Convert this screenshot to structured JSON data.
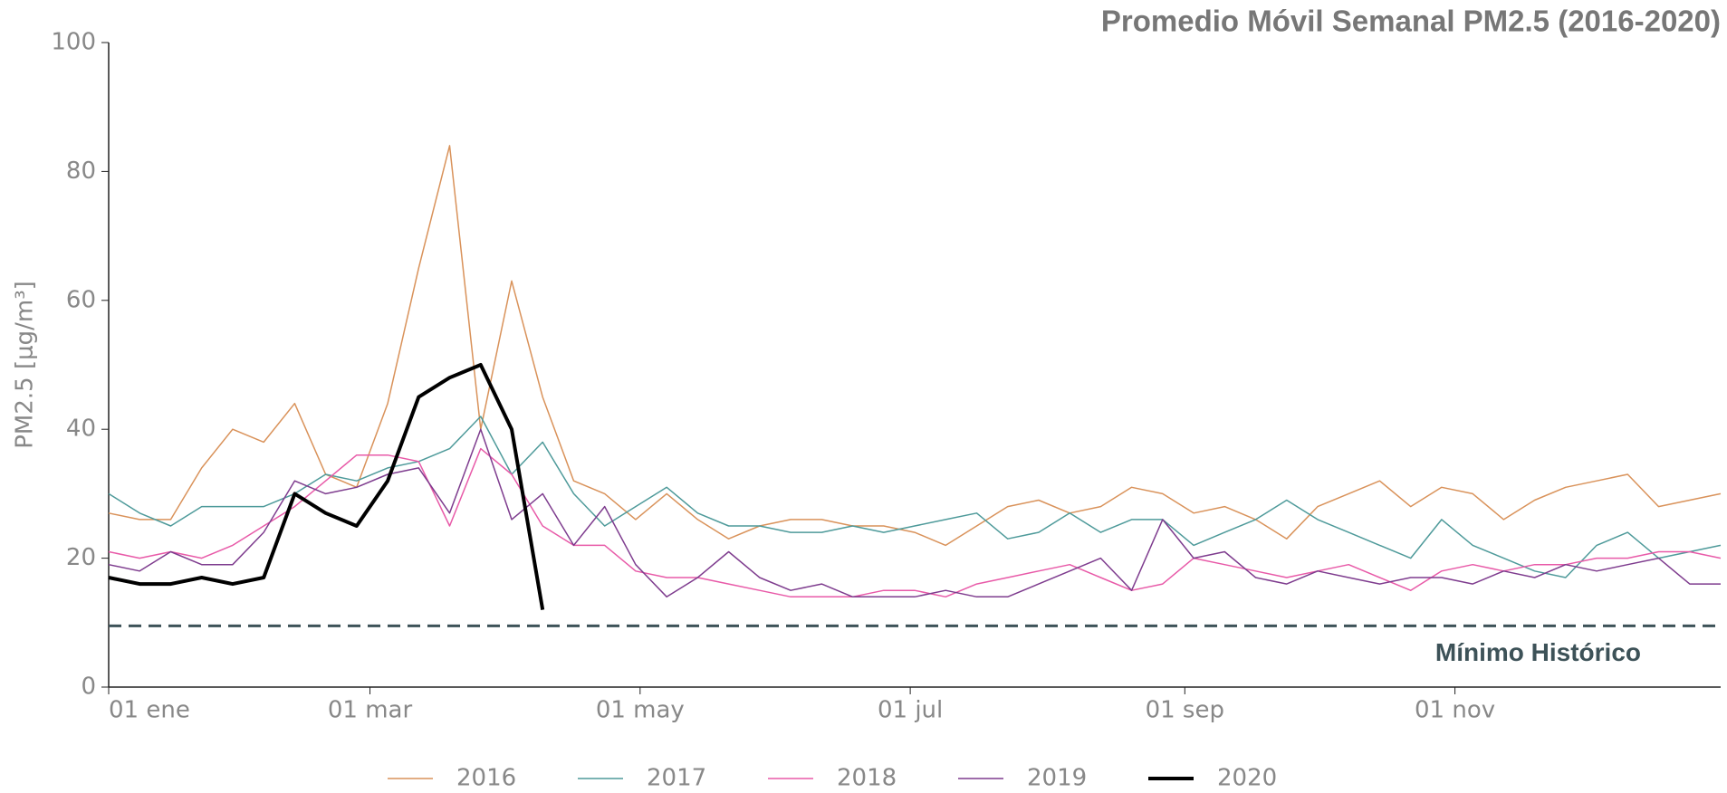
{
  "chart_data": {
    "type": "line",
    "title": "Promedio Móvil Semanal PM2.5 (2016-2020)",
    "y_label": "PM2.5 [μg/m³]",
    "x": [
      0,
      7,
      14,
      21,
      28,
      35,
      42,
      49,
      56,
      63,
      70,
      77,
      84,
      91,
      98,
      105,
      112,
      119,
      126,
      133,
      140,
      147,
      154,
      161,
      168,
      175,
      182,
      189,
      196,
      203,
      210,
      217,
      224,
      231,
      238,
      245,
      252,
      259,
      266,
      273,
      280,
      287,
      294,
      301,
      308,
      315,
      322,
      329,
      336,
      343,
      350,
      357,
      364
    ],
    "xlim": [
      0,
      364
    ],
    "xticks": [
      {
        "value": 0,
        "label": "01 ene"
      },
      {
        "value": 59,
        "label": "01 mar"
      },
      {
        "value": 120,
        "label": "01 may"
      },
      {
        "value": 181,
        "label": "01 jul"
      },
      {
        "value": 243,
        "label": "01 sep"
      },
      {
        "value": 304,
        "label": "01 nov"
      }
    ],
    "ylim": [
      0,
      100
    ],
    "yticks": [
      0,
      20,
      40,
      60,
      80,
      100
    ],
    "grid": false,
    "legend": "bottom",
    "series": [
      {
        "name": "2016",
        "color": "#d9925a",
        "width": 1.5,
        "values": [
          27,
          26,
          26,
          34,
          40,
          38,
          44,
          33,
          31,
          44,
          65,
          84,
          40,
          63,
          45,
          32,
          30,
          26,
          30,
          26,
          23,
          25,
          26,
          26,
          25,
          25,
          24,
          22,
          25,
          28,
          29,
          27,
          28,
          31,
          30,
          27,
          28,
          26,
          23,
          28,
          30,
          32,
          28,
          31,
          30,
          26,
          29,
          31,
          32,
          33,
          28,
          29,
          30
        ]
      },
      {
        "name": "2017",
        "color": "#4e9a9a",
        "width": 1.5,
        "values": [
          30,
          27,
          25,
          28,
          28,
          28,
          30,
          33,
          32,
          34,
          35,
          37,
          42,
          33,
          38,
          30,
          25,
          28,
          31,
          27,
          25,
          25,
          24,
          24,
          25,
          24,
          25,
          26,
          27,
          23,
          24,
          27,
          24,
          26,
          26,
          22,
          24,
          26,
          29,
          26,
          24,
          22,
          20,
          26,
          22,
          20,
          18,
          17,
          22,
          24,
          20,
          21,
          22
        ]
      },
      {
        "name": "2018",
        "color": "#e85aa8",
        "width": 1.5,
        "values": [
          21,
          20,
          21,
          20,
          22,
          25,
          28,
          32,
          36,
          36,
          35,
          25,
          37,
          33,
          25,
          22,
          22,
          18,
          17,
          17,
          16,
          15,
          14,
          14,
          14,
          15,
          15,
          14,
          16,
          17,
          18,
          19,
          17,
          15,
          16,
          20,
          19,
          18,
          17,
          18,
          19,
          17,
          15,
          18,
          19,
          18,
          19,
          19,
          20,
          20,
          21,
          21,
          20
        ]
      },
      {
        "name": "2019",
        "color": "#7e3c8e",
        "width": 1.5,
        "values": [
          19,
          18,
          21,
          19,
          19,
          24,
          32,
          30,
          31,
          33,
          34,
          27,
          40,
          26,
          30,
          22,
          28,
          19,
          14,
          17,
          21,
          17,
          15,
          16,
          14,
          14,
          14,
          15,
          14,
          14,
          16,
          18,
          20,
          15,
          26,
          20,
          21,
          17,
          16,
          18,
          17,
          16,
          17,
          17,
          16,
          18,
          17,
          19,
          18,
          19,
          20,
          16,
          16
        ]
      },
      {
        "name": "2020",
        "color": "#000000",
        "width": 4,
        "values": [
          17,
          16,
          16,
          17,
          16,
          17,
          30,
          27,
          25,
          32,
          45,
          48,
          50,
          40,
          12,
          null,
          null,
          null,
          null,
          null,
          null,
          null,
          null,
          null,
          null,
          null,
          null,
          null,
          null,
          null,
          null,
          null,
          null,
          null,
          null,
          null,
          null,
          null,
          null,
          null,
          null,
          null,
          null,
          null,
          null,
          null,
          null,
          null,
          null,
          null,
          null,
          null,
          null
        ]
      }
    ],
    "reference_line": {
      "value": 9.5,
      "label": "Mínimo Histórico",
      "color": "#3d5258"
    }
  }
}
